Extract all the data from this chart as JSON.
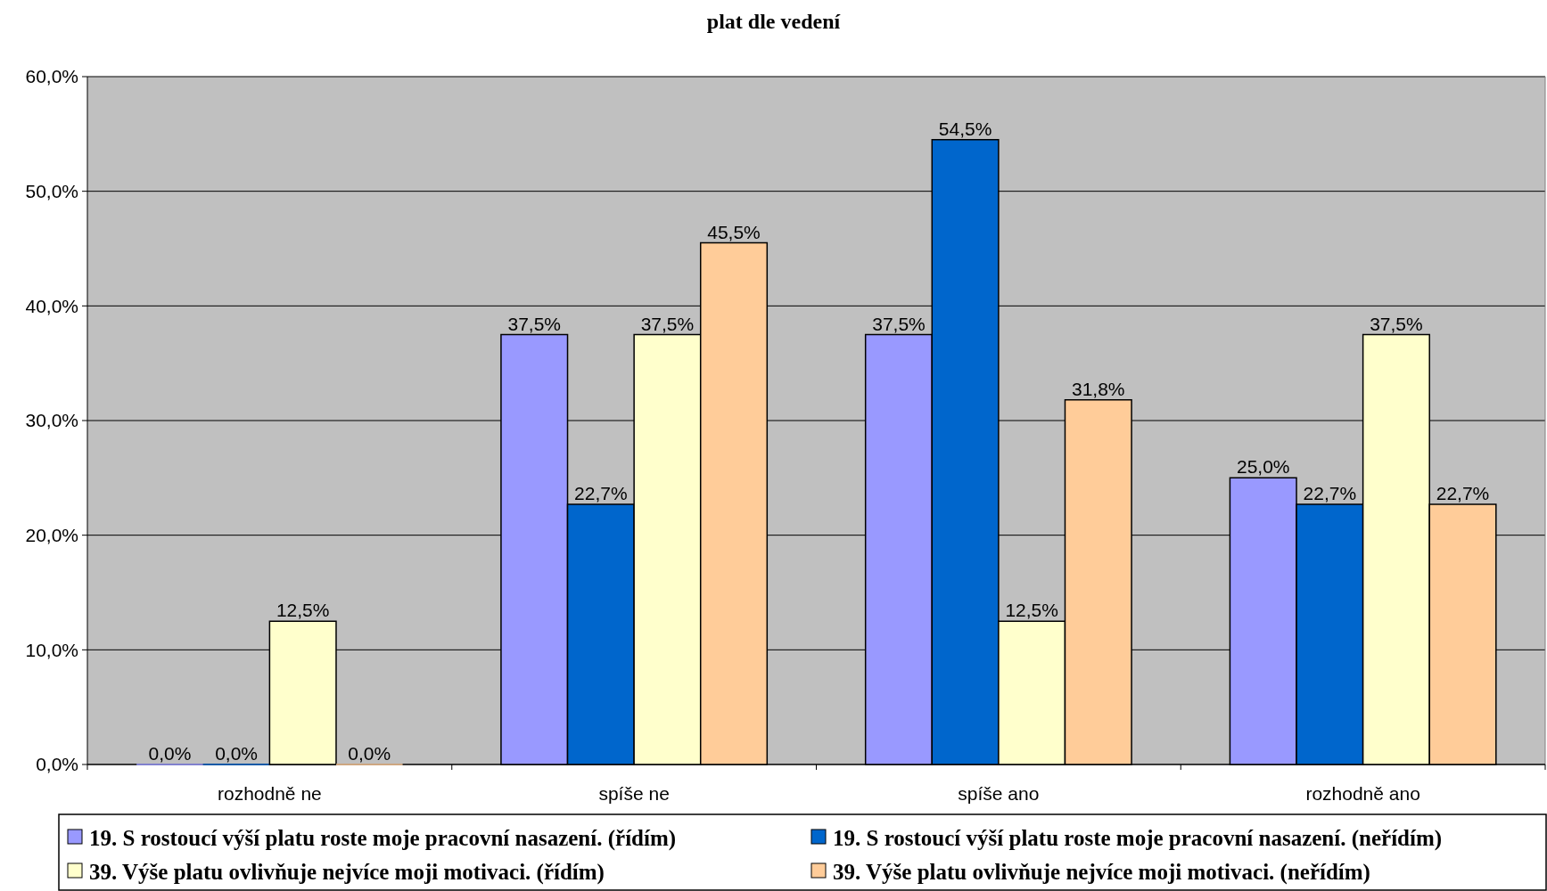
{
  "chart_data": {
    "type": "bar",
    "title": "plat dle vedení",
    "categories": [
      "rozhodně ne",
      "spíše ne",
      "spíše ano",
      "rozhodně ano"
    ],
    "series": [
      {
        "name": "19. S rostoucí výší platu roste moje pracovní nasazení. (řídím)",
        "color": "#9999ff",
        "values": [
          0,
          37.5,
          37.5,
          25
        ],
        "value_labels": [
          "0,0%",
          "37,5%",
          "37,5%",
          "25,0%"
        ]
      },
      {
        "name": "19. S rostoucí výší platu roste moje pracovní nasazení. (neřídím)",
        "color": "#0066cc",
        "values": [
          0,
          22.7,
          54.5,
          22.7
        ],
        "value_labels": [
          "0,0%",
          "22,7%",
          "54,5%",
          "22,7%"
        ]
      },
      {
        "name": "39. Výše platu ovlivňuje nejvíce moji motivaci. (řídím)",
        "color": "#ffffcc",
        "values": [
          12.5,
          37.5,
          12.5,
          37.5
        ],
        "value_labels": [
          "12,5%",
          "37,5%",
          "12,5%",
          "37,5%"
        ]
      },
      {
        "name": "39. Výše platu ovlivňuje nejvíce moji motivaci. (neřídím)",
        "color": "#ffcc99",
        "values": [
          0,
          45.5,
          31.8,
          22.7
        ],
        "value_labels": [
          "0,0%",
          "45,5%",
          "31,8%",
          "22,7%"
        ]
      }
    ],
    "ylim": [
      0,
      60
    ],
    "yticks": [
      {
        "value": 0,
        "label": "0,0%"
      },
      {
        "value": 10,
        "label": "10,0%"
      },
      {
        "value": 20,
        "label": "20,0%"
      },
      {
        "value": 30,
        "label": "30,0%"
      },
      {
        "value": 40,
        "label": "40,0%"
      },
      {
        "value": 50,
        "label": "50,0%"
      },
      {
        "value": 60,
        "label": "60,0%"
      }
    ],
    "grid": "y",
    "legend": "bottom"
  }
}
